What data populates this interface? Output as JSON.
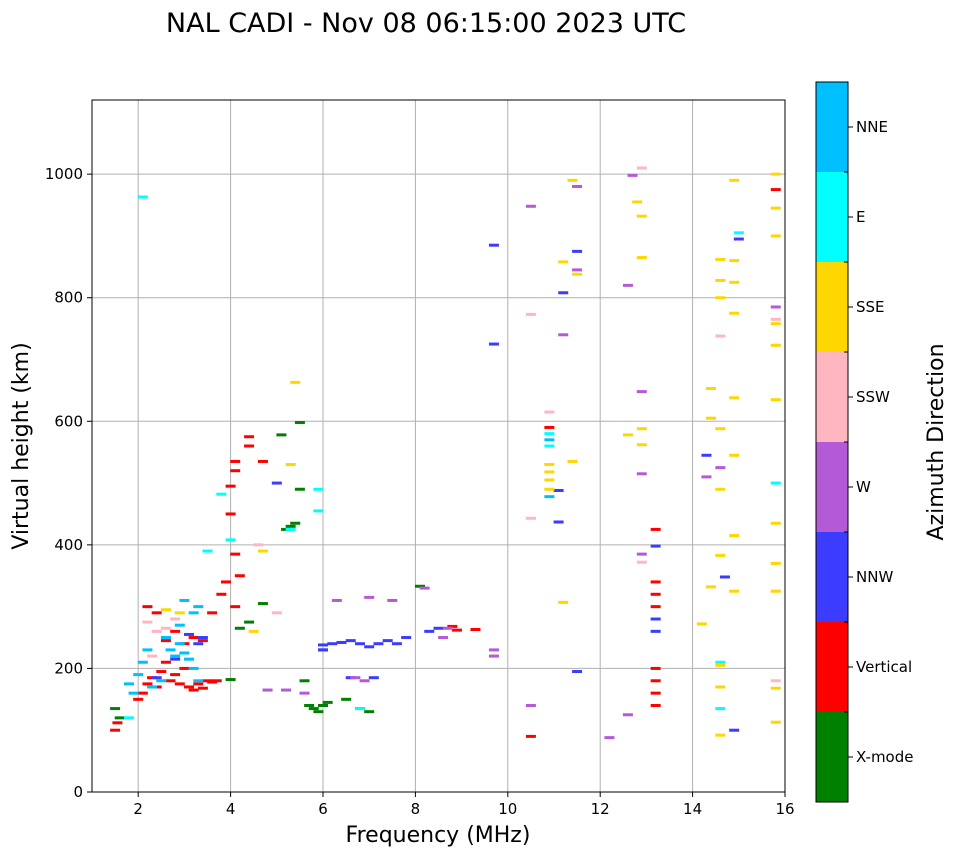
{
  "chart_data": {
    "type": "scatter",
    "title": "NAL CADI - Nov 08 06:15:00 2023 UTC",
    "xlabel": "Frequency (MHz)",
    "ylabel": "Virtual height (km)",
    "xlim": [
      1,
      16
    ],
    "ylim": [
      0,
      1120
    ],
    "xticks": [
      2,
      4,
      6,
      8,
      10,
      12,
      14,
      16
    ],
    "yticks": [
      0,
      200,
      400,
      600,
      800,
      1000
    ],
    "grid": true,
    "colorbar": {
      "label": "Azimuth Direction",
      "categories": [
        {
          "name": "X-mode",
          "color": "#008000"
        },
        {
          "name": "Vertical",
          "color": "#ff0000"
        },
        {
          "name": "NNW",
          "color": "#3c3cff"
        },
        {
          "name": "W",
          "color": "#b45ad7"
        },
        {
          "name": "SSW",
          "color": "#ffb6c1"
        },
        {
          "name": "SSE",
          "color": "#ffd700"
        },
        {
          "name": "E",
          "color": "#00ffff"
        },
        {
          "name": "NNE",
          "color": "#00bfff"
        }
      ]
    },
    "series": [
      {
        "name": "X-mode",
        "points": [
          [
            1.5,
            135
          ],
          [
            1.6,
            120
          ],
          [
            4.0,
            182
          ],
          [
            4.2,
            265
          ],
          [
            4.4,
            275
          ],
          [
            4.7,
            305
          ],
          [
            5.1,
            578
          ],
          [
            5.2,
            425
          ],
          [
            5.3,
            430
          ],
          [
            5.4,
            435
          ],
          [
            5.5,
            598
          ],
          [
            5.5,
            490
          ],
          [
            5.6,
            180
          ],
          [
            5.7,
            140
          ],
          [
            5.8,
            135
          ],
          [
            5.9,
            130
          ],
          [
            6.0,
            140
          ],
          [
            6.1,
            145
          ],
          [
            6.5,
            150
          ],
          [
            6.8,
            135
          ],
          [
            7.0,
            130
          ],
          [
            8.1,
            333
          ],
          [
            6.0,
            230
          ]
        ]
      },
      {
        "name": "Vertical",
        "points": [
          [
            1.5,
            100
          ],
          [
            1.55,
            112
          ],
          [
            2.0,
            150
          ],
          [
            2.1,
            160
          ],
          [
            2.2,
            175
          ],
          [
            2.3,
            185
          ],
          [
            2.4,
            170
          ],
          [
            2.5,
            195
          ],
          [
            2.6,
            210
          ],
          [
            2.7,
            180
          ],
          [
            2.8,
            190
          ],
          [
            2.9,
            175
          ],
          [
            3.0,
            200
          ],
          [
            3.1,
            170
          ],
          [
            3.2,
            165
          ],
          [
            3.3,
            175
          ],
          [
            3.4,
            168
          ],
          [
            3.5,
            180
          ],
          [
            3.6,
            178
          ],
          [
            3.7,
            180
          ],
          [
            2.2,
            300
          ],
          [
            2.4,
            290
          ],
          [
            2.6,
            245
          ],
          [
            2.8,
            260
          ],
          [
            3.0,
            240
          ],
          [
            3.2,
            250
          ],
          [
            3.4,
            245
          ],
          [
            3.6,
            290
          ],
          [
            3.8,
            320
          ],
          [
            3.9,
            340
          ],
          [
            4.0,
            450
          ],
          [
            4.0,
            495
          ],
          [
            4.1,
            520
          ],
          [
            4.1,
            535
          ],
          [
            4.2,
            350
          ],
          [
            4.1,
            385
          ],
          [
            4.1,
            300
          ],
          [
            4.4,
            560
          ],
          [
            4.4,
            575
          ],
          [
            4.7,
            535
          ],
          [
            8.8,
            268
          ],
          [
            8.9,
            262
          ],
          [
            9.3,
            263
          ],
          [
            10.5,
            90
          ],
          [
            13.2,
            425
          ],
          [
            13.2,
            340
          ],
          [
            13.2,
            320
          ],
          [
            13.2,
            300
          ],
          [
            13.2,
            200
          ],
          [
            13.2,
            180
          ],
          [
            13.2,
            160
          ],
          [
            13.2,
            140
          ],
          [
            10.9,
            590
          ],
          [
            15.8,
            975
          ]
        ]
      },
      {
        "name": "NNW",
        "points": [
          [
            2.4,
            185
          ],
          [
            2.8,
            215
          ],
          [
            3.1,
            255
          ],
          [
            3.3,
            240
          ],
          [
            3.4,
            250
          ],
          [
            5.0,
            500
          ],
          [
            6.0,
            238
          ],
          [
            6.2,
            240
          ],
          [
            6.4,
            242
          ],
          [
            6.6,
            245
          ],
          [
            6.8,
            240
          ],
          [
            7.0,
            235
          ],
          [
            7.2,
            240
          ],
          [
            7.4,
            245
          ],
          [
            7.6,
            240
          ],
          [
            7.8,
            250
          ],
          [
            8.3,
            260
          ],
          [
            8.5,
            265
          ],
          [
            9.7,
            885
          ],
          [
            9.7,
            725
          ],
          [
            11.1,
            488
          ],
          [
            11.1,
            437
          ],
          [
            11.2,
            808
          ],
          [
            11.5,
            875
          ],
          [
            11.5,
            195
          ],
          [
            13.2,
            398
          ],
          [
            13.2,
            280
          ],
          [
            13.2,
            260
          ],
          [
            14.3,
            545
          ],
          [
            14.7,
            348
          ],
          [
            14.9,
            100
          ],
          [
            15.0,
            895
          ],
          [
            6.0,
            230
          ],
          [
            6.6,
            185
          ],
          [
            7.1,
            185
          ]
        ]
      },
      {
        "name": "W",
        "points": [
          [
            4.8,
            165
          ],
          [
            5.2,
            165
          ],
          [
            5.6,
            160
          ],
          [
            6.3,
            310
          ],
          [
            6.7,
            185
          ],
          [
            6.9,
            180
          ],
          [
            7.0,
            315
          ],
          [
            7.5,
            310
          ],
          [
            8.2,
            330
          ],
          [
            8.6,
            250
          ],
          [
            8.7,
            265
          ],
          [
            9.7,
            230
          ],
          [
            9.7,
            220
          ],
          [
            10.5,
            948
          ],
          [
            10.5,
            140
          ],
          [
            11.2,
            740
          ],
          [
            11.5,
            980
          ],
          [
            11.5,
            845
          ],
          [
            12.2,
            88
          ],
          [
            12.6,
            820
          ],
          [
            12.6,
            125
          ],
          [
            12.7,
            998
          ],
          [
            12.9,
            648
          ],
          [
            12.9,
            515
          ],
          [
            12.9,
            385
          ],
          [
            14.3,
            510
          ],
          [
            14.6,
            525
          ],
          [
            15.8,
            785
          ]
        ]
      },
      {
        "name": "SSW",
        "points": [
          [
            2.2,
            275
          ],
          [
            2.4,
            260
          ],
          [
            2.6,
            265
          ],
          [
            2.8,
            280
          ],
          [
            2.3,
            220
          ],
          [
            4.6,
            400
          ],
          [
            5.0,
            290
          ],
          [
            10.5,
            773
          ],
          [
            10.5,
            443
          ],
          [
            10.9,
            615
          ],
          [
            12.9,
            1010
          ],
          [
            12.9,
            372
          ],
          [
            14.6,
            738
          ],
          [
            15.8,
            765
          ],
          [
            15.8,
            180
          ]
        ]
      },
      {
        "name": "SSE",
        "points": [
          [
            2.6,
            295
          ],
          [
            2.9,
            290
          ],
          [
            4.5,
            260
          ],
          [
            4.7,
            390
          ],
          [
            5.3,
            530
          ],
          [
            5.4,
            663
          ],
          [
            10.9,
            530
          ],
          [
            10.9,
            518
          ],
          [
            10.9,
            505
          ],
          [
            10.9,
            490
          ],
          [
            11.2,
            858
          ],
          [
            11.2,
            307
          ],
          [
            11.4,
            990
          ],
          [
            11.4,
            535
          ],
          [
            11.5,
            838
          ],
          [
            12.6,
            578
          ],
          [
            12.8,
            955
          ],
          [
            12.9,
            932
          ],
          [
            12.9,
            865
          ],
          [
            12.9,
            588
          ],
          [
            12.9,
            562
          ],
          [
            14.2,
            272
          ],
          [
            14.4,
            653
          ],
          [
            14.4,
            605
          ],
          [
            14.4,
            332
          ],
          [
            14.6,
            862
          ],
          [
            14.6,
            828
          ],
          [
            14.6,
            800
          ],
          [
            14.6,
            588
          ],
          [
            14.6,
            490
          ],
          [
            14.6,
            383
          ],
          [
            14.6,
            170
          ],
          [
            14.6,
            92
          ],
          [
            14.9,
            990
          ],
          [
            14.9,
            860
          ],
          [
            14.9,
            825
          ],
          [
            14.9,
            775
          ],
          [
            14.9,
            638
          ],
          [
            14.9,
            545
          ],
          [
            14.9,
            415
          ],
          [
            14.9,
            325
          ],
          [
            15.8,
            1000
          ],
          [
            15.8,
            945
          ],
          [
            15.8,
            900
          ],
          [
            15.8,
            758
          ],
          [
            15.8,
            723
          ],
          [
            15.8,
            635
          ],
          [
            15.8,
            435
          ],
          [
            15.8,
            370
          ],
          [
            15.8,
            325
          ],
          [
            15.8,
            168
          ],
          [
            15.8,
            113
          ],
          [
            14.6,
            205
          ]
        ]
      },
      {
        "name": "E",
        "points": [
          [
            2.1,
            963
          ],
          [
            1.8,
            120
          ],
          [
            3.5,
            390
          ],
          [
            3.8,
            482
          ],
          [
            4.0,
            408
          ],
          [
            5.3,
            425
          ],
          [
            5.9,
            455
          ],
          [
            5.9,
            490
          ],
          [
            6.8,
            135
          ],
          [
            10.9,
            580
          ],
          [
            10.9,
            560
          ],
          [
            14.6,
            210
          ],
          [
            14.6,
            135
          ],
          [
            15.0,
            905
          ],
          [
            15.8,
            500
          ]
        ]
      },
      {
        "name": "NNE",
        "points": [
          [
            1.8,
            175
          ],
          [
            1.9,
            160
          ],
          [
            2.0,
            190
          ],
          [
            2.1,
            210
          ],
          [
            2.2,
            230
          ],
          [
            2.3,
            170
          ],
          [
            2.5,
            180
          ],
          [
            2.6,
            250
          ],
          [
            2.7,
            230
          ],
          [
            2.8,
            220
          ],
          [
            2.9,
            240
          ],
          [
            3.0,
            225
          ],
          [
            3.1,
            215
          ],
          [
            3.2,
            200
          ],
          [
            3.3,
            180
          ],
          [
            3.0,
            310
          ],
          [
            3.2,
            290
          ],
          [
            3.3,
            300
          ],
          [
            2.9,
            270
          ],
          [
            10.9,
            570
          ],
          [
            10.9,
            478
          ]
        ]
      }
    ]
  }
}
